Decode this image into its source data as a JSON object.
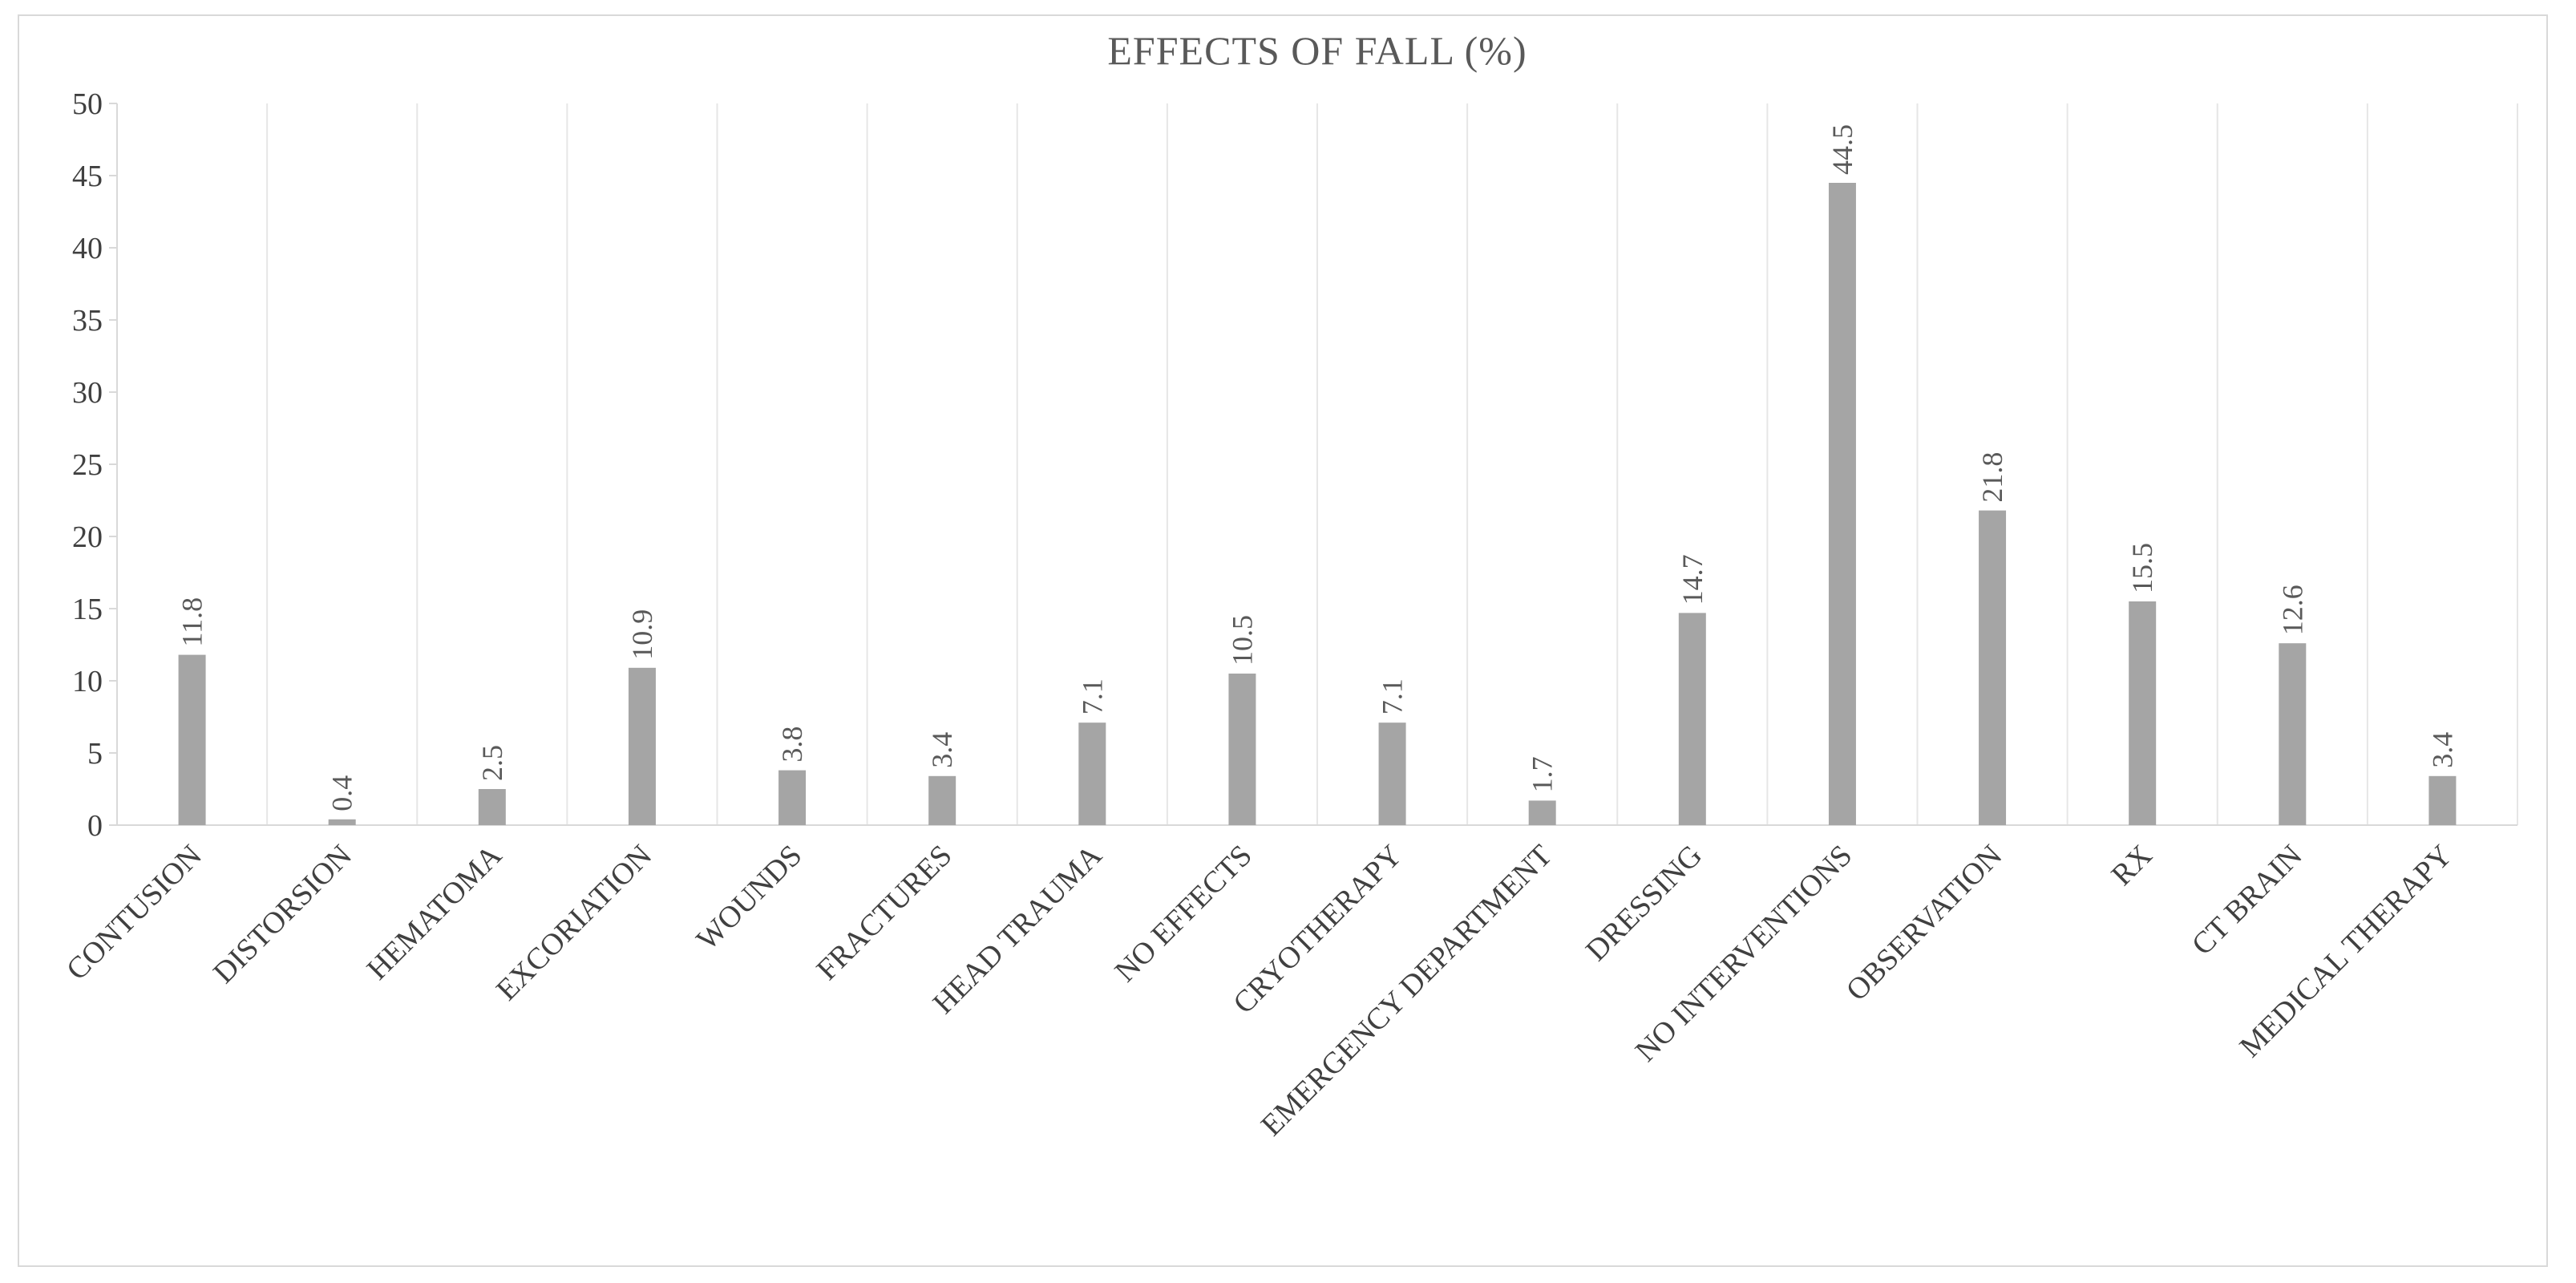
{
  "chart_data": {
    "type": "bar",
    "title": "EFFECTS OF FALL (%)",
    "xlabel": "",
    "ylabel": "",
    "ylim": [
      0,
      50
    ],
    "yticks": [
      0,
      5,
      10,
      15,
      20,
      25,
      30,
      35,
      40,
      45,
      50
    ],
    "grid": "vertical category separators",
    "legend": "none",
    "categories": [
      "CONTUSION",
      "DISTORSION",
      "HEMATOMA",
      "EXCORIATION",
      "WOUNDS",
      "FRACTURES",
      "HEAD TRAUMA",
      "NO EFFECTS",
      "CRYOTHERAPY",
      "EMERGENCY DEPARTMENT",
      "DRESSING",
      "NO INTERVENTIONS",
      "OBSERVATION",
      "RX",
      "CT BRAIN",
      "MEDICAL THERAPY"
    ],
    "values": [
      11.8,
      0.4,
      2.5,
      10.9,
      3.8,
      3.4,
      7.1,
      10.5,
      7.1,
      1.7,
      14.7,
      44.5,
      21.8,
      15.5,
      12.6,
      3.4
    ],
    "bar_color": "#a5a5a5"
  }
}
